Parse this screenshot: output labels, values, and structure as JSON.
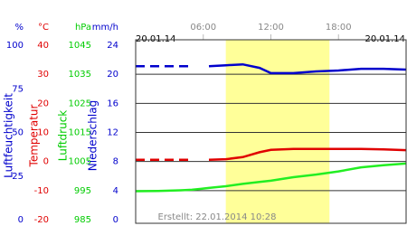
{
  "chart_data": {
    "type": "line",
    "date_left": "20.01.14",
    "date_right": "20.01.14",
    "footer": "Erstellt: 22.01.2014 10:28",
    "xlim": [
      0,
      24
    ],
    "xticks": [
      {
        "value": 6,
        "label": "06:00"
      },
      {
        "value": 12,
        "label": "12:00"
      },
      {
        "value": 18,
        "label": "18:00"
      }
    ],
    "highlight": [
      8,
      17.2
    ],
    "highlight_color": "#ffff99",
    "grid": true,
    "axes": [
      {
        "unit": "%",
        "label": "Luftfeuchtigkeit",
        "color": "#0000cc",
        "ylim": [
          0,
          100
        ],
        "yticks": [
          0,
          25,
          50,
          75,
          100
        ]
      },
      {
        "unit": "°C",
        "label": "Temperatur",
        "color": "#e00000",
        "ylim": [
          -20,
          40
        ],
        "yticks": [
          -20,
          -10,
          0,
          10,
          20,
          30,
          40
        ]
      },
      {
        "unit": "hPa",
        "label": "Luftdruck",
        "color": "#00cc00",
        "ylim": [
          985,
          1045
        ],
        "yticks": [
          985,
          995,
          1005,
          1015,
          1025,
          1035,
          1045
        ]
      },
      {
        "unit": "mm/h",
        "label": "Niederschlag",
        "color": "#0000cc",
        "ylim": [
          0,
          24
        ],
        "yticks": [
          0,
          4,
          8,
          12,
          16,
          20,
          24
        ]
      }
    ],
    "x": [
      0,
      2,
      4,
      5,
      5.8,
      6.5,
      8,
      9.5,
      11,
      12,
      14,
      16,
      18,
      20,
      22,
      24
    ],
    "series": [
      {
        "name": "Luftfeuchtigkeit",
        "axis": 0,
        "color": "#0000cc",
        "dash_first": true,
        "values": [
          88,
          88,
          88,
          88,
          null,
          88,
          88.5,
          89,
          87,
          84,
          84,
          85,
          85.5,
          86.5,
          86.5,
          86
        ]
      },
      {
        "name": "Temperatur",
        "axis": 1,
        "color": "#e00000",
        "dash_first": true,
        "values": [
          0.6,
          0.6,
          0.6,
          0.6,
          null,
          0.6,
          0.8,
          1.5,
          3.2,
          4,
          4.3,
          4.3,
          4.3,
          4.3,
          4.2,
          3.9
        ]
      },
      {
        "name": "Luftdruck",
        "axis": 2,
        "color": "#22ee22",
        "dash_first": false,
        "values": [
          994.8,
          994.9,
          995.1,
          995.3,
          995.6,
          995.9,
          996.5,
          997.3,
          998,
          998.4,
          999.6,
          1000.5,
          1001.6,
          1003,
          1003.7,
          1004.3
        ]
      }
    ]
  }
}
